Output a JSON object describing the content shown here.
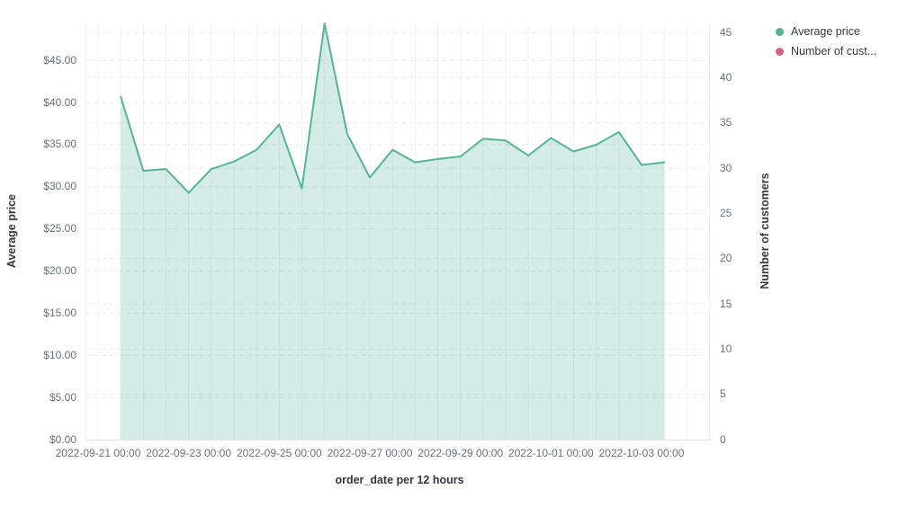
{
  "chart_data": {
    "type": "area",
    "title": "",
    "xlabel": "order_date per 12 hours",
    "x_interval": "12 hours",
    "x": [
      "2022-09-21 12:00",
      "2022-09-22 00:00",
      "2022-09-22 12:00",
      "2022-09-23 00:00",
      "2022-09-23 12:00",
      "2022-09-24 00:00",
      "2022-09-24 12:00",
      "2022-09-25 00:00",
      "2022-09-25 12:00",
      "2022-09-26 00:00",
      "2022-09-26 12:00",
      "2022-09-27 00:00",
      "2022-09-27 12:00",
      "2022-09-28 00:00",
      "2022-09-28 12:00",
      "2022-09-29 00:00",
      "2022-09-29 12:00",
      "2022-09-30 00:00",
      "2022-09-30 12:00",
      "2022-10-01 00:00",
      "2022-10-01 12:00",
      "2022-10-02 00:00",
      "2022-10-02 12:00",
      "2022-10-03 00:00",
      "2022-10-03 12:00"
    ],
    "series": [
      {
        "name": "Average price",
        "axis": "left",
        "color": "#54B399",
        "fill_opacity": 0.25,
        "visible": true,
        "values": [
          40.7,
          31.9,
          32.1,
          29.3,
          32.1,
          33.0,
          34.4,
          37.4,
          29.8,
          49.4,
          36.3,
          31.1,
          34.4,
          32.9,
          33.3,
          33.6,
          35.7,
          35.5,
          33.7,
          35.8,
          34.2,
          35.0,
          36.5,
          32.6,
          32.9
        ]
      },
      {
        "name": "Number of customers",
        "axis": "right",
        "color": "#D36086",
        "visible": false,
        "values": []
      }
    ],
    "left_axis": {
      "title": "Average price",
      "min": 0,
      "max": 49.4,
      "tick_values": [
        0,
        5,
        10,
        15,
        20,
        25,
        30,
        35,
        40,
        45
      ],
      "tick_labels": [
        "$0.00",
        "$5.00",
        "$10.00",
        "$15.00",
        "$20.00",
        "$25.00",
        "$30.00",
        "$35.00",
        "$40.00",
        "$45.00"
      ]
    },
    "right_axis": {
      "title": "Number of customers",
      "min": 0,
      "max": 46,
      "tick_values": [
        0,
        5,
        10,
        15,
        20,
        25,
        30,
        35,
        40,
        45
      ],
      "tick_labels": [
        "0",
        "5",
        "10",
        "15",
        "20",
        "25",
        "30",
        "35",
        "40",
        "45"
      ]
    },
    "x_axis": {
      "title": "order_date per 12 hours",
      "tick_labels": [
        "2022-09-21 00:00",
        "2022-09-23 00:00",
        "2022-09-25 00:00",
        "2022-09-27 00:00",
        "2022-09-29 00:00",
        "2022-10-01 00:00",
        "2022-10-03 00:00"
      ]
    },
    "grid": {
      "horizontal": "dashed, one set per axis",
      "vertical": "solid every 12 hours",
      "visible": true
    },
    "legend": {
      "position": "top-right",
      "items": [
        {
          "label": "Average price",
          "color": "#54B399"
        },
        {
          "label": "Number of cust...",
          "color": "#D36086"
        }
      ]
    }
  }
}
